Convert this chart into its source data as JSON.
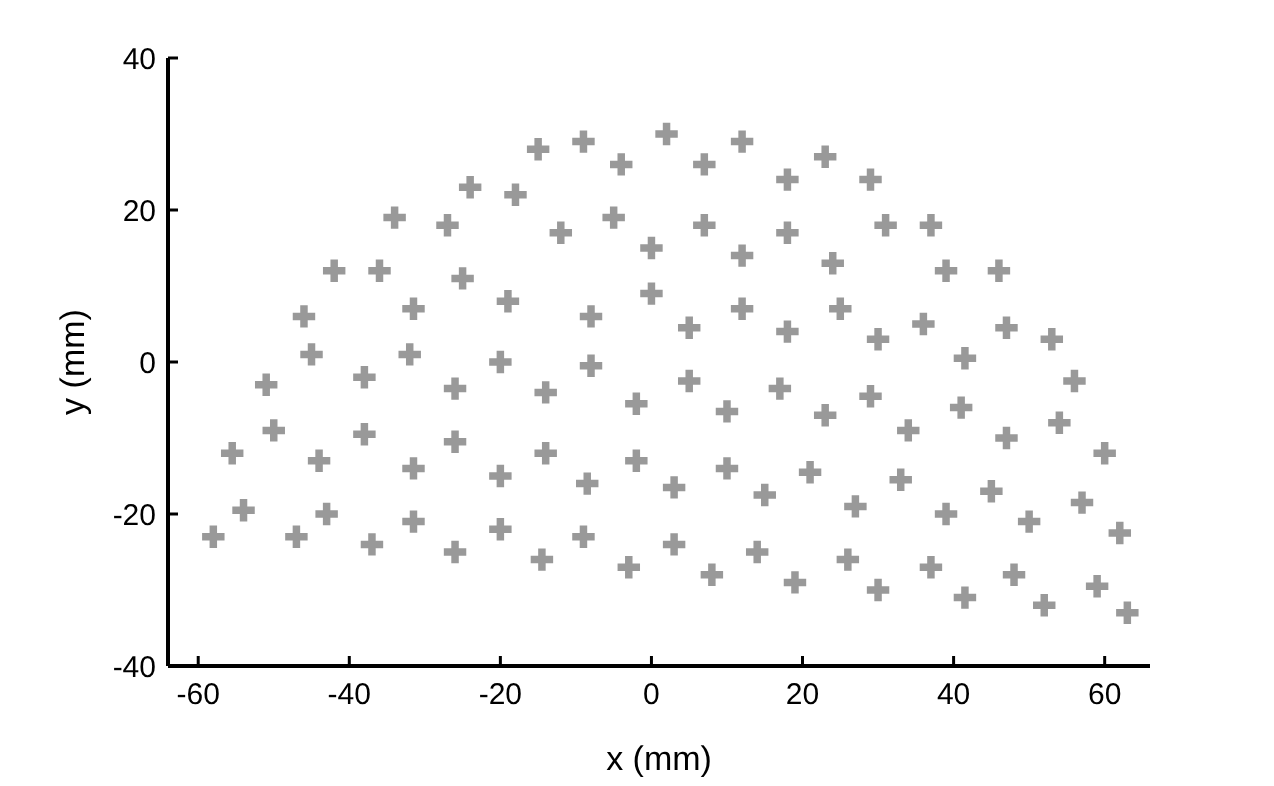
{
  "chart_data": {
    "type": "scatter",
    "xlabel": "x (mm)",
    "ylabel": "y (mm)",
    "xlim": [
      -64,
      66
    ],
    "ylim": [
      -40,
      40
    ],
    "xticks": [
      -60,
      -40,
      -20,
      0,
      20,
      40,
      60
    ],
    "yticks": [
      -40,
      -20,
      0,
      20,
      40
    ],
    "grid": false,
    "marker": "cross",
    "series": [
      {
        "color": "#999999",
        "x": [
          -45,
          -46,
          -42,
          -36,
          -34,
          -27,
          -24,
          -18,
          -15,
          -9,
          -4,
          -31.5,
          -25,
          -19,
          -12,
          -5,
          0,
          -8,
          0,
          -32,
          -20,
          -8,
          -38,
          2,
          12,
          7,
          18,
          23,
          29,
          7,
          18,
          12,
          24,
          31,
          37,
          39,
          46,
          12,
          5,
          18,
          25,
          30,
          36,
          41.5,
          47,
          53,
          -51,
          -26,
          -14,
          -2,
          -55.5,
          -50,
          -44,
          -38,
          -31.5,
          -26,
          -20,
          -14,
          -8.5,
          -2,
          -58,
          -54,
          -47,
          -43,
          -37,
          -31.5,
          -26,
          -20,
          -14.5,
          -9,
          -3,
          5,
          17,
          29,
          56,
          10,
          23,
          34,
          41,
          47,
          54,
          60,
          3,
          10,
          15,
          21,
          27,
          33,
          39,
          45,
          50,
          57,
          62,
          3,
          8,
          14,
          19,
          26,
          30,
          37,
          41.5,
          48,
          52,
          59,
          63
        ],
        "values": [
          1,
          6,
          12,
          12,
          19,
          18,
          23,
          22,
          28,
          29,
          26,
          7,
          11,
          8,
          17,
          19,
          15,
          6,
          9,
          1,
          0,
          -0.5,
          -2,
          30,
          29,
          26,
          24,
          27,
          24,
          18,
          17,
          14,
          13,
          18,
          18,
          12,
          12,
          7,
          4.5,
          4,
          7,
          3,
          5,
          0.5,
          4.5,
          3,
          -3,
          -3.5,
          -4,
          -5.5,
          -12,
          -9,
          -13,
          -9.5,
          -14,
          -10.5,
          -15,
          -12,
          -16,
          -13,
          -23,
          -19.5,
          -23,
          -20,
          -24,
          -21,
          -25,
          -22,
          -26,
          -23,
          -27,
          -2.5,
          -3.5,
          -4.5,
          -2.5,
          -6.5,
          -7,
          -9,
          -6,
          -10,
          -8,
          -12,
          -16.5,
          -14,
          -17.5,
          -14.5,
          -19,
          -15.5,
          -20,
          -17,
          -21,
          -18.5,
          -22.5,
          -24,
          -28,
          -25,
          -29,
          -26,
          -30,
          -27,
          -31,
          -28,
          -32,
          -29.5,
          -33
        ]
      }
    ]
  }
}
